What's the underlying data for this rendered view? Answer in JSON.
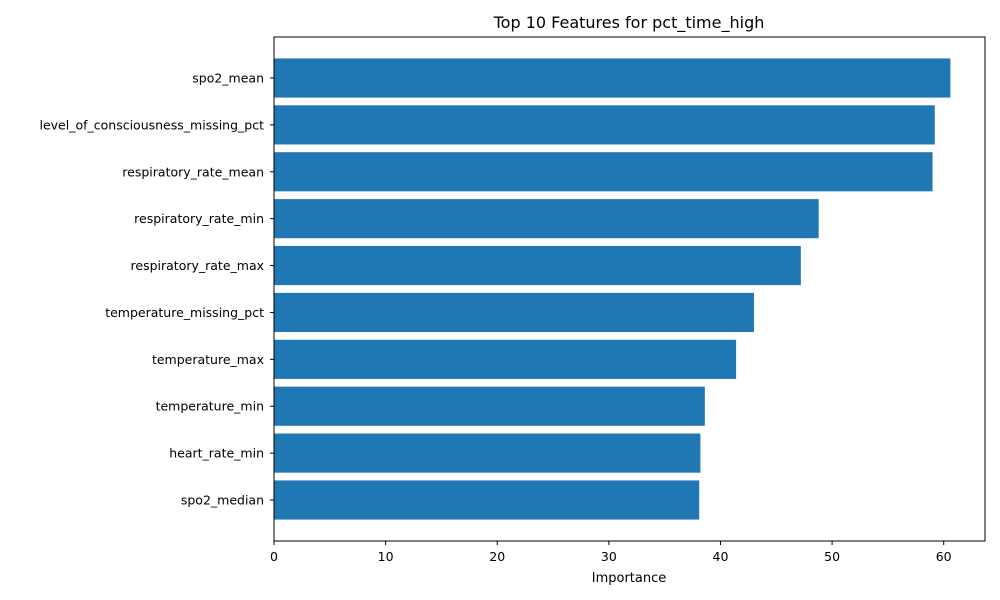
{
  "chart_data": {
    "type": "bar",
    "orientation": "horizontal",
    "title": "Top 10 Features for pct_time_high",
    "xlabel": "Importance",
    "ylabel": "",
    "xlim": [
      0,
      63.7
    ],
    "xticks": [
      0,
      10,
      20,
      30,
      40,
      50,
      60
    ],
    "categories": [
      "spo2_mean",
      "level_of_consciousness_missing_pct",
      "respiratory_rate_mean",
      "respiratory_rate_min",
      "respiratory_rate_max",
      "temperature_missing_pct",
      "temperature_max",
      "temperature_min",
      "heart_rate_min",
      "spo2_median"
    ],
    "values": [
      60.6,
      59.2,
      59.0,
      48.8,
      47.2,
      43.0,
      41.4,
      38.6,
      38.2,
      38.1
    ],
    "bar_color": "#1f77b4",
    "grid": false,
    "legend": "none"
  }
}
